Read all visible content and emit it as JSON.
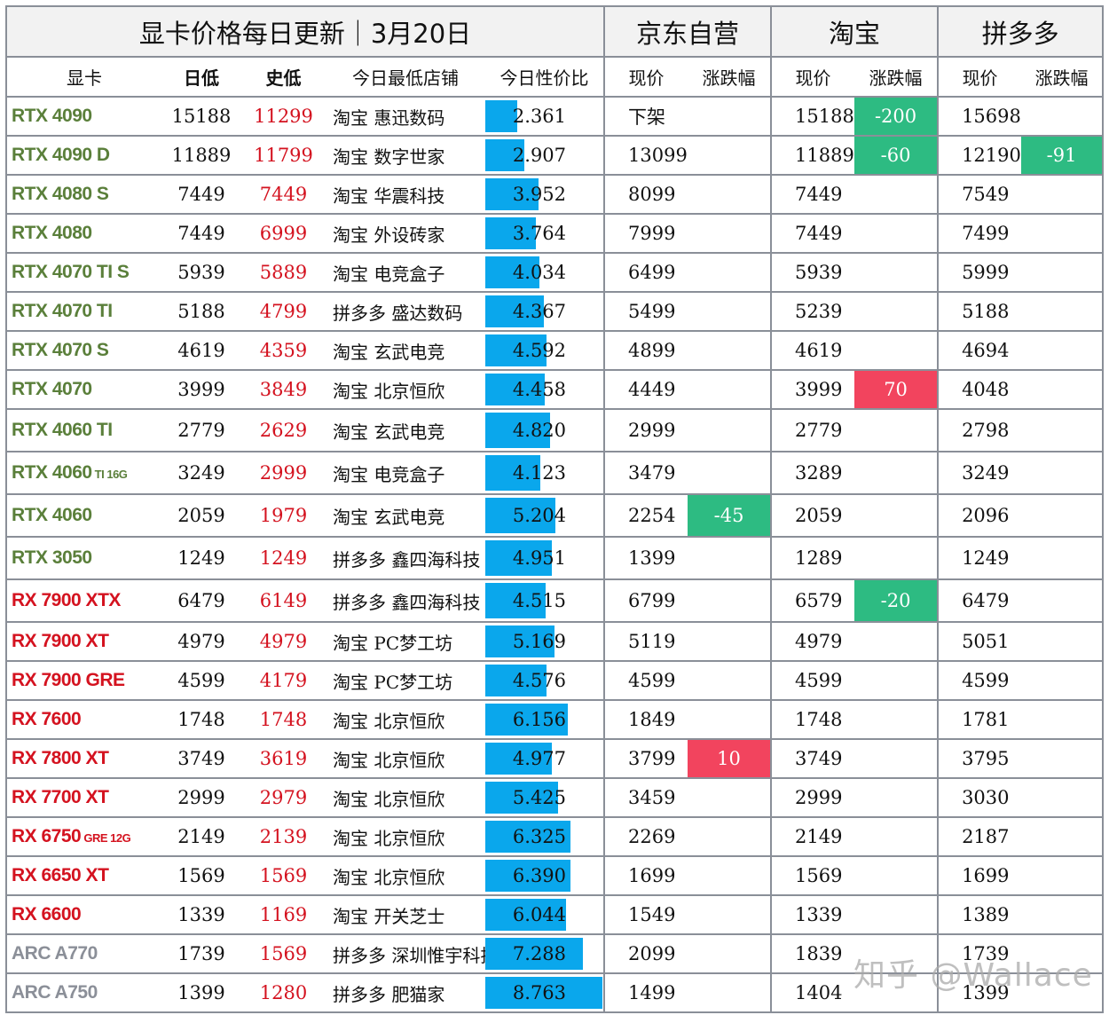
{
  "title": "显卡价格每日更新｜3月20日",
  "platforms": [
    "京东自营",
    "淘宝",
    "拼多多"
  ],
  "columns": {
    "card": "显卡",
    "day_low": "日低",
    "hist_low": "史低",
    "shop": "今日最低店铺",
    "ratio": "今日性价比",
    "price": "现价",
    "change": "涨跌幅"
  },
  "colors": {
    "nvidia": "#5a7f3a",
    "amd": "#d4121f",
    "intel": "#8b8f98",
    "bar": "#0aa7ec",
    "drop": "#2dbb82",
    "rise": "#f2445e"
  },
  "rows": [
    {
      "name": "RTX 4090",
      "suffix": "",
      "brand": "nv",
      "day_low": "15188",
      "hist_low": "11299",
      "shop": "淘宝  惠迅数码",
      "ratio": "2.361",
      "jd": "下架",
      "jd_chg": "",
      "tb": "15188",
      "tb_chg": "-200",
      "pdd": "15698",
      "pdd_chg": ""
    },
    {
      "name": "RTX 4090 D",
      "suffix": "",
      "brand": "nv",
      "day_low": "11889",
      "hist_low": "11799",
      "shop": "淘宝  数字世家",
      "ratio": "2.907",
      "jd": "13099",
      "jd_chg": "",
      "tb": "11889",
      "tb_chg": "-60",
      "pdd": "12190",
      "pdd_chg": "-91"
    },
    {
      "name": "RTX 4080 S",
      "suffix": "",
      "brand": "nv",
      "day_low": "7449",
      "hist_low": "7449",
      "shop": "淘宝  华震科技",
      "ratio": "3.952",
      "jd": "8099",
      "jd_chg": "",
      "tb": "7449",
      "tb_chg": "",
      "pdd": "7549",
      "pdd_chg": ""
    },
    {
      "name": "RTX 4080",
      "suffix": "",
      "brand": "nv",
      "day_low": "7449",
      "hist_low": "6999",
      "shop": "淘宝  外设砖家",
      "ratio": "3.764",
      "jd": "7999",
      "jd_chg": "",
      "tb": "7449",
      "tb_chg": "",
      "pdd": "7499",
      "pdd_chg": ""
    },
    {
      "name": "RTX 4070 TI S",
      "suffix": "",
      "brand": "nv",
      "day_low": "5939",
      "hist_low": "5889",
      "shop": "淘宝  电竞盒子",
      "ratio": "4.034",
      "jd": "6499",
      "jd_chg": "",
      "tb": "5939",
      "tb_chg": "",
      "pdd": "5999",
      "pdd_chg": ""
    },
    {
      "name": "RTX 4070 TI",
      "suffix": "",
      "brand": "nv",
      "day_low": "5188",
      "hist_low": "4799",
      "shop": "拼多多  盛达数码",
      "ratio": "4.367",
      "jd": "5499",
      "jd_chg": "",
      "tb": "5239",
      "tb_chg": "",
      "pdd": "5188",
      "pdd_chg": ""
    },
    {
      "name": "RTX 4070 S",
      "suffix": "",
      "brand": "nv",
      "day_low": "4619",
      "hist_low": "4359",
      "shop": "淘宝  玄武电竞",
      "ratio": "4.592",
      "jd": "4899",
      "jd_chg": "",
      "tb": "4619",
      "tb_chg": "",
      "pdd": "4694",
      "pdd_chg": ""
    },
    {
      "name": "RTX 4070",
      "suffix": "",
      "brand": "nv",
      "day_low": "3999",
      "hist_low": "3849",
      "shop": "淘宝  北京恒欣",
      "ratio": "4.458",
      "jd": "4449",
      "jd_chg": "",
      "tb": "3999",
      "tb_chg": "70",
      "pdd": "4048",
      "pdd_chg": ""
    },
    {
      "name": "RTX 4060 TI",
      "suffix": "",
      "brand": "nv",
      "day_low": "2779",
      "hist_low": "2629",
      "shop": "淘宝  玄武电竞",
      "ratio": "4.820",
      "jd": "2999",
      "jd_chg": "",
      "tb": "2779",
      "tb_chg": "",
      "pdd": "2798",
      "pdd_chg": ""
    },
    {
      "name": "RTX 4060",
      "suffix": " TI 16G",
      "brand": "nv",
      "day_low": "3249",
      "hist_low": "2999",
      "shop": "淘宝  电竞盒子",
      "ratio": "4.123",
      "jd": "3479",
      "jd_chg": "",
      "tb": "3289",
      "tb_chg": "",
      "pdd": "3249",
      "pdd_chg": ""
    },
    {
      "name": "RTX 4060",
      "suffix": "",
      "brand": "nv",
      "day_low": "2059",
      "hist_low": "1979",
      "shop": "淘宝  玄武电竞",
      "ratio": "5.204",
      "jd": "2254",
      "jd_chg": "-45",
      "tb": "2059",
      "tb_chg": "",
      "pdd": "2096",
      "pdd_chg": ""
    },
    {
      "name": "RTX 3050",
      "suffix": "",
      "brand": "nv",
      "day_low": "1249",
      "hist_low": "1249",
      "shop": "拼多多  鑫四海科技",
      "ratio": "4.951",
      "jd": "1399",
      "jd_chg": "",
      "tb": "1289",
      "tb_chg": "",
      "pdd": "1249",
      "pdd_chg": ""
    },
    {
      "name": "RX 7900 XTX",
      "suffix": "",
      "brand": "amd",
      "day_low": "6479",
      "hist_low": "6149",
      "shop": "拼多多  鑫四海科技",
      "ratio": "4.515",
      "jd": "6799",
      "jd_chg": "",
      "tb": "6579",
      "tb_chg": "-20",
      "pdd": "6479",
      "pdd_chg": ""
    },
    {
      "name": "RX 7900 XT",
      "suffix": "",
      "brand": "amd",
      "day_low": "4979",
      "hist_low": "4979",
      "shop": "淘宝  PC梦工坊",
      "ratio": "5.169",
      "jd": "5119",
      "jd_chg": "",
      "tb": "4979",
      "tb_chg": "",
      "pdd": "5051",
      "pdd_chg": ""
    },
    {
      "name": "RX 7900 GRE",
      "suffix": "",
      "brand": "amd",
      "day_low": "4599",
      "hist_low": "4179",
      "shop": "淘宝 PC梦工坊",
      "ratio": "4.576",
      "jd": "4599",
      "jd_chg": "",
      "tb": "4599",
      "tb_chg": "",
      "pdd": "4599",
      "pdd_chg": ""
    },
    {
      "name": "RX 7600",
      "suffix": "",
      "brand": "amd",
      "day_low": "1748",
      "hist_low": "1748",
      "shop": "淘宝 北京恒欣",
      "ratio": "6.156",
      "jd": "1849",
      "jd_chg": "",
      "tb": "1748",
      "tb_chg": "",
      "pdd": "1781",
      "pdd_chg": ""
    },
    {
      "name": "RX 7800 XT",
      "suffix": "",
      "brand": "amd",
      "day_low": "3749",
      "hist_low": "3619",
      "shop": "淘宝  北京恒欣",
      "ratio": "4.977",
      "jd": "3799",
      "jd_chg": "10",
      "tb": "3749",
      "tb_chg": "",
      "pdd": "3795",
      "pdd_chg": ""
    },
    {
      "name": "RX 7700 XT",
      "suffix": "",
      "brand": "amd",
      "day_low": "2999",
      "hist_low": "2979",
      "shop": "淘宝  北京恒欣",
      "ratio": "5.425",
      "jd": "3459",
      "jd_chg": "",
      "tb": "2999",
      "tb_chg": "",
      "pdd": "3030",
      "pdd_chg": ""
    },
    {
      "name": "RX 6750",
      "suffix": " GRE 12G",
      "brand": "amd",
      "day_low": "2149",
      "hist_low": "2139",
      "shop": "淘宝 北京恒欣",
      "ratio": "6.325",
      "jd": "2269",
      "jd_chg": "",
      "tb": "2149",
      "tb_chg": "",
      "pdd": "2187",
      "pdd_chg": ""
    },
    {
      "name": "RX 6650 XT",
      "suffix": "",
      "brand": "amd",
      "day_low": "1569",
      "hist_low": "1569",
      "shop": "淘宝  北京恒欣",
      "ratio": "6.390",
      "jd": "1699",
      "jd_chg": "",
      "tb": "1569",
      "tb_chg": "",
      "pdd": "1699",
      "pdd_chg": ""
    },
    {
      "name": "RX 6600",
      "suffix": "",
      "brand": "amd",
      "day_low": "1339",
      "hist_low": "1169",
      "shop": "淘宝  开关芝士",
      "ratio": "6.044",
      "jd": "1549",
      "jd_chg": "",
      "tb": "1339",
      "tb_chg": "",
      "pdd": "1389",
      "pdd_chg": ""
    },
    {
      "name": "ARC A770",
      "suffix": "",
      "brand": "intel",
      "day_low": "1739",
      "hist_low": "1569",
      "shop": "拼多多  深圳惟宇科技",
      "ratio": "7.288",
      "jd": "2099",
      "jd_chg": "",
      "tb": "1839",
      "tb_chg": "",
      "pdd": "1739",
      "pdd_chg": ""
    },
    {
      "name": "ARC A750",
      "suffix": "",
      "brand": "intel",
      "day_low": "1399",
      "hist_low": "1280",
      "shop": "拼多多  肥猫家",
      "ratio": "8.763",
      "jd": "1499",
      "jd_chg": "",
      "tb": "1404",
      "tb_chg": "",
      "pdd": "1399",
      "pdd_chg": ""
    }
  ],
  "watermark": "知乎 @Wallace"
}
